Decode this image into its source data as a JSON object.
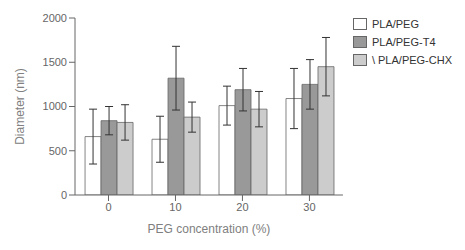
{
  "chart_data": {
    "type": "bar",
    "categories": [
      "0",
      "10",
      "20",
      "30"
    ],
    "xlabel": "PEG concentration (%)",
    "ylabel": "Diameter (nm)",
    "ylim": [
      0,
      2000
    ],
    "yticks": [
      0,
      500,
      1000,
      1500,
      2000
    ],
    "grid": false,
    "legend": "upper right",
    "series": [
      {
        "name": "PLA/PEG",
        "color": "white",
        "values": [
          660,
          630,
          1010,
          1090
        ],
        "errors": [
          310,
          260,
          220,
          340
        ]
      },
      {
        "name": "PLA/PEG-T4",
        "color": "#999999",
        "values": [
          840,
          1320,
          1190,
          1250
        ],
        "errors": [
          160,
          360,
          240,
          280
        ]
      },
      {
        "name": "\\ PLA/PEG-CHX",
        "color": "#cccccc",
        "values": [
          820,
          880,
          970,
          1450
        ],
        "errors": [
          200,
          170,
          200,
          330
        ]
      }
    ]
  }
}
